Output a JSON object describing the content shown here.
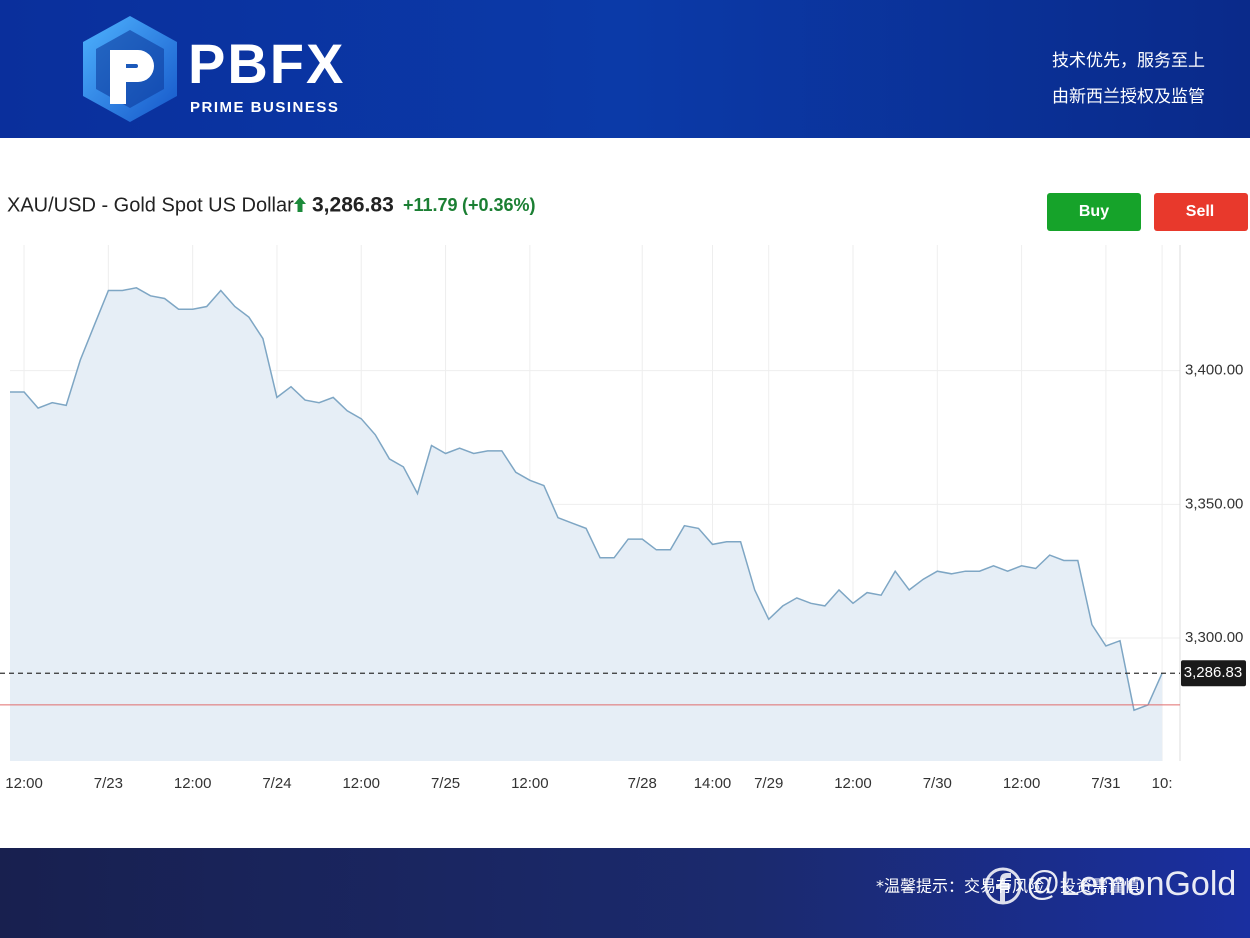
{
  "header": {
    "logo": "PBFX",
    "logo_subtitle": "PRIME BUSINESS",
    "slogan_1": "技术优先，服务至上",
    "slogan_2": "由新西兰授权及监管"
  },
  "quote": {
    "symbol_name": "XAU/USD - Gold Spot US Dollar",
    "change": "+11.79",
    "change_percent": "(+0.36%)",
    "buy": "Buy",
    "sell": "Sell"
  },
  "chart_data": {
    "type": "area",
    "color": "#7ea6c4",
    "fill": "#e6eef6",
    "grid": true,
    "categories": [
      null,
      "12:00",
      null,
      null,
      null,
      null,
      null,
      "7/23",
      null,
      null,
      null,
      null,
      null,
      "12:00",
      null,
      null,
      null,
      null,
      null,
      "7/24",
      null,
      null,
      null,
      null,
      null,
      "12:00",
      null,
      null,
      null,
      null,
      null,
      "7/25",
      null,
      null,
      null,
      null,
      null,
      "12:00",
      null,
      null,
      null,
      null,
      null,
      null,
      null,
      "7/28",
      null,
      null,
      null,
      null,
      "14:00",
      null,
      null,
      null,
      "7/29",
      null,
      null,
      null,
      null,
      null,
      "12:00",
      null,
      null,
      null,
      null,
      null,
      "7/30",
      null,
      null,
      null,
      null,
      null,
      "12:00",
      null,
      null,
      null,
      null,
      null,
      "7/31",
      null,
      null,
      null,
      "10:"
    ],
    "values": [
      3392,
      3392,
      3386,
      3388,
      3387,
      3404,
      3417,
      3430,
      3430,
      3431,
      3428,
      3427,
      3423,
      3423,
      3424,
      3430,
      3424,
      3420,
      3412,
      3390,
      3394,
      3389,
      3388,
      3390,
      3385,
      3382,
      3376,
      3367,
      3364,
      3354,
      3372,
      3369,
      3371,
      3369,
      3370,
      3370,
      3362,
      3359,
      3357,
      3345,
      3343,
      3341,
      3330,
      3330,
      3337,
      3337,
      3333,
      3333,
      3342,
      3341,
      3335,
      3336,
      3336,
      3318,
      3307,
      3312,
      3315,
      3313,
      3312,
      3318,
      3313,
      3317,
      3316,
      3325,
      3318,
      3322,
      3325,
      3324,
      3325,
      3325,
      3327,
      3325,
      3327,
      3326,
      3331,
      3329,
      3329,
      3305,
      3297,
      3299,
      3273,
      3275,
      3286.83
    ],
    "ylim": [
      3254,
      3447
    ],
    "yticks": [
      {
        "value": 3300,
        "label": "3,300.00"
      },
      {
        "value": 3350,
        "label": "3,350.00"
      },
      {
        "value": 3400,
        "label": "3,400.00"
      }
    ],
    "last_price": {
      "value": 3286.83,
      "label": "3,286.83"
    },
    "reference_line": 3275
  },
  "footer": {
    "notice": "*温馨提示：交易有风险，投资需谨慎",
    "watermark": "@LemonGold"
  }
}
